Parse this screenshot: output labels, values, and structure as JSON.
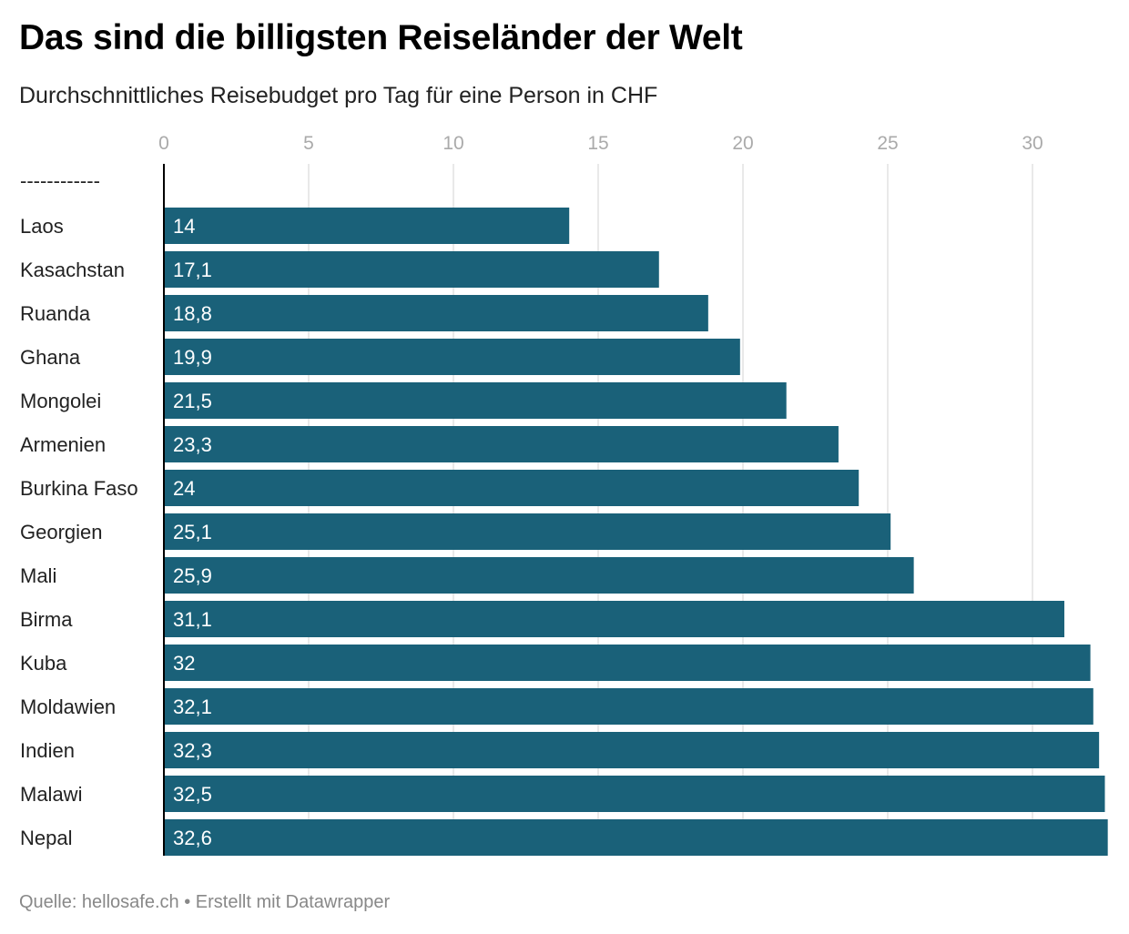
{
  "chart_data": {
    "type": "bar",
    "orientation": "horizontal",
    "title": "Das sind die billigsten Reiseländer der Welt",
    "subtitle": "Durchschnittliches Reisebudget pro Tag für eine Person in CHF",
    "source": "Quelle: hellosafe.ch • Erstellt mit Datawrapper",
    "header_row_label": "------------",
    "categories": [
      "Laos",
      "Kasachstan",
      "Ruanda",
      "Ghana",
      "Mongolei",
      "Armenien",
      "Burkina Faso",
      "Georgien",
      "Mali",
      "Birma",
      "Kuba",
      "Moldawien",
      "Indien",
      "Malawi",
      "Nepal"
    ],
    "values": [
      14,
      17.1,
      18.8,
      19.9,
      21.5,
      23.3,
      24,
      25.1,
      25.9,
      31.1,
      32,
      32.1,
      32.3,
      32.5,
      32.6
    ],
    "value_labels": [
      "14",
      "17,1",
      "18,8",
      "19,9",
      "21,5",
      "23,3",
      "24",
      "25,1",
      "25,9",
      "31,1",
      "32",
      "32,1",
      "32,3",
      "32,5",
      "32,6"
    ],
    "xticks": [
      0,
      5,
      10,
      15,
      20,
      25,
      30
    ],
    "xlim": [
      0,
      32.6
    ],
    "grid": true,
    "bar_color": "#1a6179",
    "xlabel": "",
    "ylabel": ""
  }
}
